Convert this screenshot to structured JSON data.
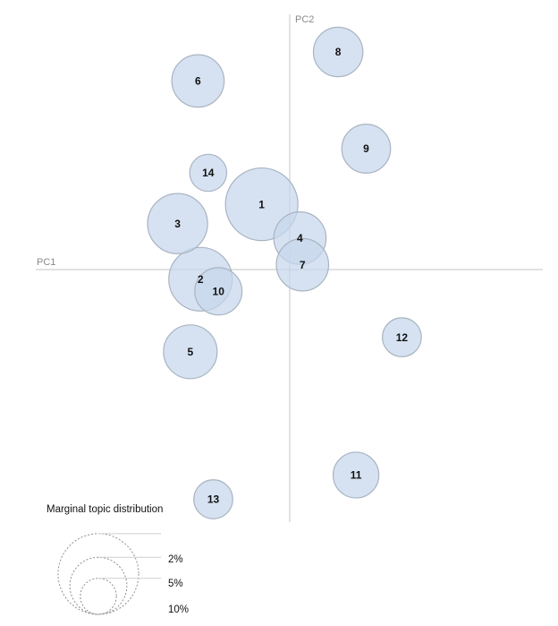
{
  "chart_data": {
    "type": "scatter",
    "title": "",
    "axes": {
      "pc1_label": "PC1",
      "pc2_label": "PC2"
    },
    "topics": [
      {
        "id": "1",
        "x": -0.11,
        "y": 0.27,
        "size": 7.3
      },
      {
        "id": "2",
        "x": -0.35,
        "y": -0.04,
        "size": 5.6
      },
      {
        "id": "3",
        "x": -0.44,
        "y": 0.19,
        "size": 5.0
      },
      {
        "id": "4",
        "x": 0.04,
        "y": 0.13,
        "size": 3.8
      },
      {
        "id": "5",
        "x": -0.39,
        "y": -0.34,
        "size": 4.0
      },
      {
        "id": "6",
        "x": -0.36,
        "y": 0.78,
        "size": 3.8
      },
      {
        "id": "7",
        "x": 0.05,
        "y": 0.02,
        "size": 3.8
      },
      {
        "id": "8",
        "x": 0.19,
        "y": 0.9,
        "size": 3.4
      },
      {
        "id": "9",
        "x": 0.3,
        "y": 0.5,
        "size": 3.3
      },
      {
        "id": "10",
        "x": -0.28,
        "y": -0.09,
        "size": 3.1
      },
      {
        "id": "11",
        "x": 0.26,
        "y": -0.85,
        "size": 2.9
      },
      {
        "id": "12",
        "x": 0.44,
        "y": -0.28,
        "size": 2.1
      },
      {
        "id": "13",
        "x": -0.3,
        "y": -0.95,
        "size": 2.1
      },
      {
        "id": "14",
        "x": -0.32,
        "y": 0.4,
        "size": 1.9
      }
    ],
    "legend": {
      "title": "Marginal topic distribution",
      "entries": [
        {
          "label": "2%",
          "value": 2
        },
        {
          "label": "5%",
          "value": 5
        },
        {
          "label": "10%",
          "value": 10
        }
      ]
    }
  }
}
